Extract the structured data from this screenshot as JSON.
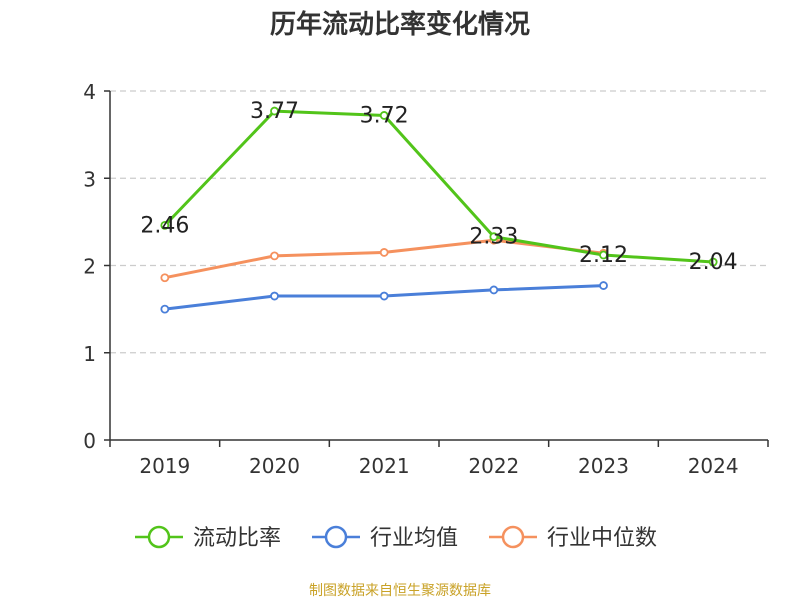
{
  "chart_data": {
    "type": "line",
    "title": "历年流动比率变化情况",
    "categories": [
      "2019",
      "2020",
      "2021",
      "2022",
      "2023",
      "2024"
    ],
    "y_ticks": [
      "0",
      "1",
      "2",
      "3",
      "4"
    ],
    "ylim": [
      0,
      4
    ],
    "grid": true,
    "legend_position": "bottom",
    "series": [
      {
        "name": "流动比率",
        "color": "#52c41a",
        "values": [
          2.46,
          3.77,
          3.72,
          2.33,
          2.12,
          2.04
        ],
        "labels": [
          "2.46",
          "3.77",
          "3.72",
          "2.33",
          "2.12",
          "2.04"
        ]
      },
      {
        "name": "行业均值",
        "color": "#4a7fd9",
        "values": [
          1.5,
          1.65,
          1.65,
          1.72,
          1.77,
          null
        ]
      },
      {
        "name": "行业中位数",
        "color": "#f5915e",
        "values": [
          1.86,
          2.11,
          2.15,
          2.29,
          2.14,
          null
        ]
      }
    ]
  },
  "footer": {
    "source": "制图数据来自恒生聚源数据库"
  }
}
